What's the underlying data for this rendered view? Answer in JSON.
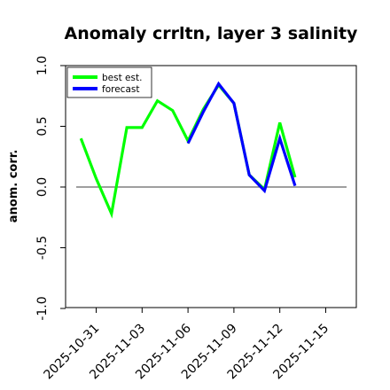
{
  "colors": {
    "best_est": "#00ff00",
    "forecast": "#0000ff",
    "zero_line": "#666666",
    "highlight_tick": "#1a8a1a",
    "axis": "#000000"
  },
  "chart_data": {
    "type": "line",
    "title": "Anomaly crrltn, layer 3 salinity",
    "xlabel": "",
    "ylabel": "anom. corr.",
    "ylim": [
      -1.0,
      1.0
    ],
    "yticks": [
      -1.0,
      -0.5,
      0.0,
      0.5,
      1.0
    ],
    "ytick_labels": [
      "-1.0",
      "-0.5",
      "0.0",
      "0.5",
      "1.0"
    ],
    "xticks": [
      "2025-10-31",
      "2025-11-03",
      "2025-11-06",
      "2025-11-09",
      "2025-11-12",
      "2025-11-15"
    ],
    "xtick_labels": [
      "2025-10-31",
      "2025-11-03",
      "2025-11-06",
      "2025-11-09",
      "2025-11-12",
      "2025-11-15"
    ],
    "highlighted_xtick": "2025-11-06",
    "xlim": [
      "2025-10-29",
      "2025-11-17"
    ],
    "reference_line_y": 0.0,
    "grid": false,
    "legend_position": "top-left",
    "series": [
      {
        "name": "best est.",
        "color": "#00ff00",
        "x": [
          "2025-10-30",
          "2025-10-31",
          "2025-11-01",
          "2025-11-02",
          "2025-11-03",
          "2025-11-04",
          "2025-11-05",
          "2025-11-06",
          "2025-11-07",
          "2025-11-08",
          "2025-11-09",
          "2025-11-10",
          "2025-11-11",
          "2025-11-12",
          "2025-11-13"
        ],
        "y": [
          0.4,
          0.07,
          -0.22,
          0.49,
          0.49,
          0.71,
          0.63,
          0.38,
          0.64,
          0.84,
          0.69,
          0.1,
          -0.02,
          0.53,
          0.08
        ]
      },
      {
        "name": "forecast",
        "color": "#0000ff",
        "x": [
          "2025-11-06",
          "2025-11-07",
          "2025-11-08",
          "2025-11-09",
          "2025-11-10",
          "2025-11-11",
          "2025-11-12",
          "2025-11-13"
        ],
        "y": [
          0.36,
          0.62,
          0.85,
          0.69,
          0.1,
          -0.03,
          0.4,
          0.01
        ]
      }
    ]
  }
}
